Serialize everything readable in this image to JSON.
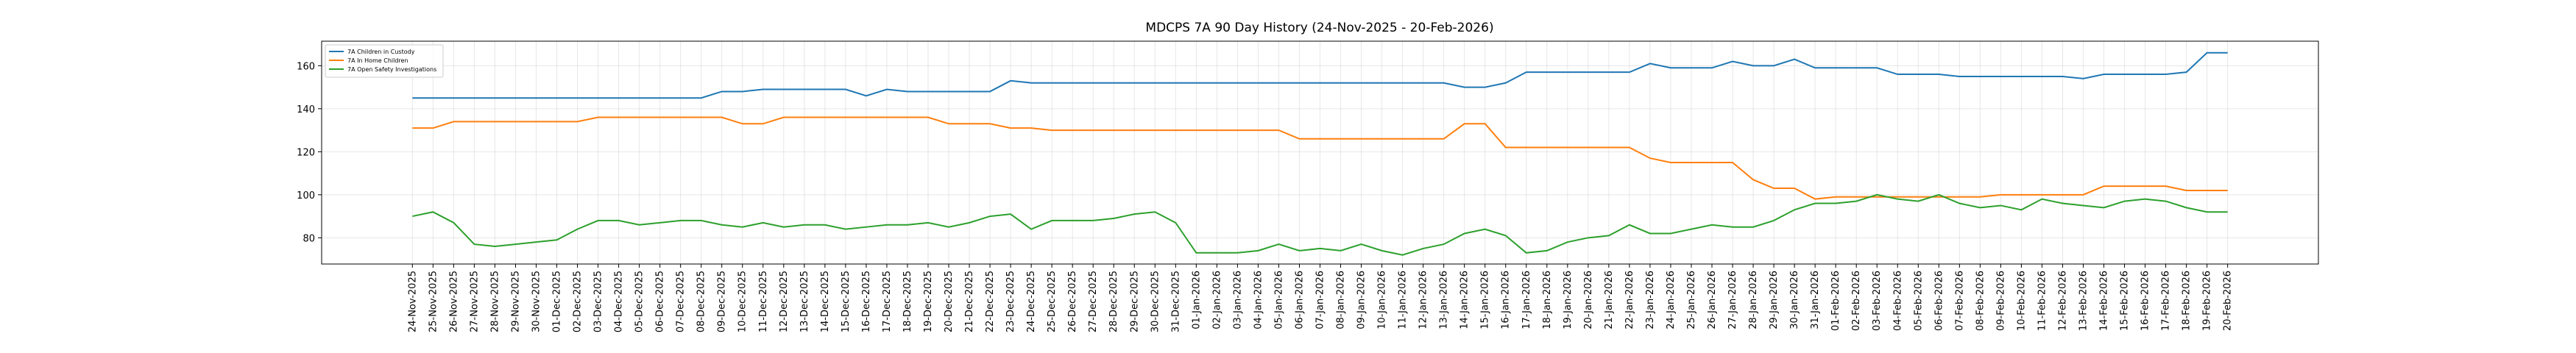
{
  "chart_data": {
    "type": "line",
    "title": "MDCPS 7A 90 Day History (24-Nov-2025 - 20-Feb-2026)",
    "categories": [
      "24-Nov-2025",
      "25-Nov-2025",
      "26-Nov-2025",
      "27-Nov-2025",
      "28-Nov-2025",
      "29-Nov-2025",
      "30-Nov-2025",
      "01-Dec-2025",
      "02-Dec-2025",
      "03-Dec-2025",
      "04-Dec-2025",
      "05-Dec-2025",
      "06-Dec-2025",
      "07-Dec-2025",
      "08-Dec-2025",
      "09-Dec-2025",
      "10-Dec-2025",
      "11-Dec-2025",
      "12-Dec-2025",
      "13-Dec-2025",
      "14-Dec-2025",
      "15-Dec-2025",
      "16-Dec-2025",
      "17-Dec-2025",
      "18-Dec-2025",
      "19-Dec-2025",
      "20-Dec-2025",
      "21-Dec-2025",
      "22-Dec-2025",
      "23-Dec-2025",
      "24-Dec-2025",
      "25-Dec-2025",
      "26-Dec-2025",
      "27-Dec-2025",
      "28-Dec-2025",
      "29-Dec-2025",
      "30-Dec-2025",
      "31-Dec-2025",
      "01-Jan-2026",
      "02-Jan-2026",
      "03-Jan-2026",
      "04-Jan-2026",
      "05-Jan-2026",
      "06-Jan-2026",
      "07-Jan-2026",
      "08-Jan-2026",
      "09-Jan-2026",
      "10-Jan-2026",
      "11-Jan-2026",
      "12-Jan-2026",
      "13-Jan-2026",
      "14-Jan-2026",
      "15-Jan-2026",
      "16-Jan-2026",
      "17-Jan-2026",
      "18-Jan-2026",
      "19-Jan-2026",
      "20-Jan-2026",
      "21-Jan-2026",
      "22-Jan-2026",
      "23-Jan-2026",
      "24-Jan-2026",
      "25-Jan-2026",
      "26-Jan-2026",
      "27-Jan-2026",
      "28-Jan-2026",
      "29-Jan-2026",
      "30-Jan-2026",
      "31-Jan-2026",
      "01-Feb-2026",
      "02-Feb-2026",
      "03-Feb-2026",
      "04-Feb-2026",
      "05-Feb-2026",
      "06-Feb-2026",
      "07-Feb-2026",
      "08-Feb-2026",
      "09-Feb-2026",
      "10-Feb-2026",
      "11-Feb-2026",
      "12-Feb-2026",
      "13-Feb-2026",
      "14-Feb-2026",
      "15-Feb-2026",
      "16-Feb-2026",
      "17-Feb-2026",
      "18-Feb-2026",
      "19-Feb-2026",
      "20-Feb-2026"
    ],
    "series": [
      {
        "name": "7A Children in Custody",
        "color": "#1f77b4",
        "values": [
          145,
          145,
          145,
          145,
          145,
          145,
          145,
          145,
          145,
          145,
          145,
          145,
          145,
          145,
          145,
          148,
          148,
          149,
          149,
          149,
          149,
          149,
          146,
          149,
          148,
          148,
          148,
          148,
          148,
          153,
          152,
          152,
          152,
          152,
          152,
          152,
          152,
          152,
          152,
          152,
          152,
          152,
          152,
          152,
          152,
          152,
          152,
          152,
          152,
          152,
          152,
          150,
          150,
          152,
          157,
          157,
          157,
          157,
          157,
          157,
          161,
          159,
          159,
          159,
          162,
          160,
          160,
          163,
          159,
          159,
          159,
          159,
          156,
          156,
          156,
          155,
          155,
          155,
          155,
          155,
          155,
          154,
          156,
          156,
          156,
          156,
          157,
          166,
          166
        ]
      },
      {
        "name": "7A In Home Children",
        "color": "#ff7f0e",
        "values": [
          131,
          131,
          134,
          134,
          134,
          134,
          134,
          134,
          134,
          136,
          136,
          136,
          136,
          136,
          136,
          136,
          133,
          133,
          136,
          136,
          136,
          136,
          136,
          136,
          136,
          136,
          133,
          133,
          133,
          131,
          131,
          130,
          130,
          130,
          130,
          130,
          130,
          130,
          130,
          130,
          130,
          130,
          130,
          126,
          126,
          126,
          126,
          126,
          126,
          126,
          126,
          133,
          133,
          122,
          122,
          122,
          122,
          122,
          122,
          122,
          117,
          115,
          115,
          115,
          115,
          107,
          103,
          103,
          98,
          99,
          99,
          99,
          99,
          99,
          99,
          99,
          99,
          100,
          100,
          100,
          100,
          100,
          104,
          104,
          104,
          104,
          102,
          102,
          102
        ]
      },
      {
        "name": "7A Open Safety Investigations",
        "color": "#2ca02c",
        "values": [
          90,
          92,
          87,
          77,
          76,
          77,
          78,
          79,
          84,
          88,
          88,
          86,
          87,
          88,
          88,
          86,
          85,
          87,
          85,
          86,
          86,
          84,
          85,
          86,
          86,
          87,
          85,
          87,
          90,
          91,
          84,
          88,
          88,
          88,
          89,
          91,
          92,
          87,
          73,
          73,
          73,
          74,
          77,
          74,
          75,
          74,
          77,
          74,
          72,
          75,
          77,
          82,
          84,
          81,
          73,
          74,
          78,
          80,
          81,
          86,
          82,
          82,
          84,
          86,
          85,
          85,
          88,
          93,
          96,
          96,
          97,
          100,
          98,
          97,
          100,
          96,
          94,
          95,
          93,
          98,
          96,
          95,
          94,
          97,
          98,
          97,
          94,
          92,
          92
        ]
      }
    ],
    "ylim": [
      67.8,
      171.4
    ],
    "yticks": [
      80,
      100,
      120,
      140,
      160
    ],
    "grid": true,
    "legend": "upper left"
  }
}
